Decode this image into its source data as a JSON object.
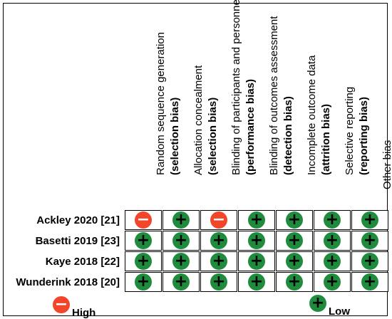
{
  "columns": [
    {
      "domain": "Random sequence generation",
      "bias": "(selection bias)"
    },
    {
      "domain": "Allocation concealment",
      "bias": "(selection bias)"
    },
    {
      "domain": "Blinding of participants and personnel",
      "bias": "(performance bias)"
    },
    {
      "domain": "Blinding of outcomes assessment",
      "bias": "(detection bias)"
    },
    {
      "domain": "Incomplete outcome data",
      "bias": "(attrition bias)"
    },
    {
      "domain": "Selective reporting",
      "bias": "(reporting bias)"
    },
    {
      "domain": "Other bias",
      "bias": ""
    }
  ],
  "studies": [
    {
      "label": "Ackley 2020 [21]",
      "ratings": [
        "high",
        "low",
        "high",
        "low",
        "low",
        "low",
        "low"
      ]
    },
    {
      "label": "Basetti 2019 [23]",
      "ratings": [
        "low",
        "low",
        "low",
        "low",
        "low",
        "low",
        "low"
      ]
    },
    {
      "label": "Kaye 2018 [22]",
      "ratings": [
        "low",
        "low",
        "low",
        "low",
        "low",
        "low",
        "low"
      ]
    },
    {
      "label": "Wunderink 2018 [20]",
      "ratings": [
        "low",
        "low",
        "low",
        "low",
        "low",
        "low",
        "low"
      ]
    }
  ],
  "symbols": {
    "high": "−",
    "low": "+"
  },
  "legend": {
    "high_label": "High",
    "low_label": "Low"
  },
  "colors": {
    "high": "#f2452a",
    "low": "#1e8c3c"
  }
}
